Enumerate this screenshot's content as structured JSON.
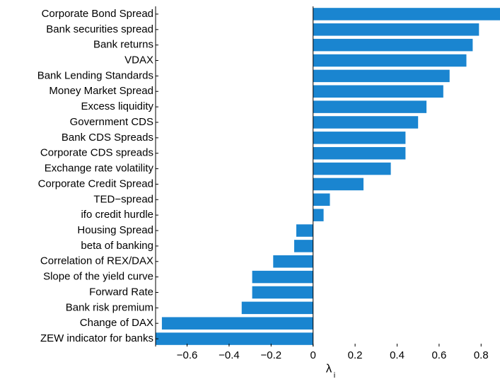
{
  "chart_data": {
    "type": "barh",
    "categories": [
      "Corporate Bond Spread",
      "Bank securities spread",
      "Bank returns",
      "VDAX",
      "Bank Lending Standards",
      "Money Market Spread",
      "Excess liquidity",
      "Government CDS",
      "Bank CDS Spreads",
      "Corporate CDS spreads",
      "Exchange rate volatility",
      "Corporate Credit Spread",
      "TED−spread",
      "ifo credit hurdle",
      "Housing Spread",
      "beta of banking",
      "Correlation of REX/DAX",
      "Slope of the yield curve",
      "Forward Rate",
      "Bank risk premium",
      "Change of DAX",
      "ZEW indicator for banks"
    ],
    "values": [
      0.89,
      0.79,
      0.76,
      0.73,
      0.65,
      0.62,
      0.54,
      0.5,
      0.44,
      0.44,
      0.37,
      0.24,
      0.08,
      0.05,
      -0.08,
      -0.09,
      -0.19,
      -0.29,
      -0.29,
      -0.34,
      -0.72,
      -0.75
    ],
    "color": "#1a85d0",
    "xlim": [
      -0.75,
      0.89
    ],
    "xticks": [
      {
        "value": -0.6,
        "label": "−0.6"
      },
      {
        "value": -0.4,
        "label": "−0.4"
      },
      {
        "value": -0.2,
        "label": "−0.2"
      },
      0,
      0.2,
      0.4,
      0.6,
      0.8
    ],
    "x_label": "λ",
    "x_label_subscript": "i"
  }
}
